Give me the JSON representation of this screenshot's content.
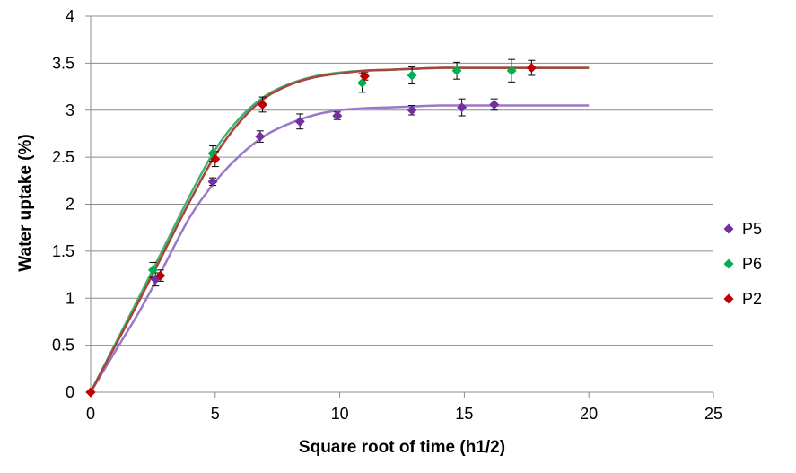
{
  "chart_data": {
    "type": "scatter",
    "title": "",
    "xlabel": "Square root of time (h1/2)",
    "ylabel": "Water uptake (%)",
    "xlim": [
      0,
      25
    ],
    "ylim": [
      0,
      4
    ],
    "x_ticks": [
      0,
      5,
      10,
      15,
      20,
      25
    ],
    "y_ticks": [
      0,
      0.5,
      1,
      1.5,
      2,
      2.5,
      3,
      3.5,
      4
    ],
    "y_tick_labels": [
      "0",
      "0.5",
      "1",
      "1.5",
      "2",
      "2.5",
      "3",
      "3.5",
      "4"
    ],
    "grid": "horizontal",
    "legend_position": "right",
    "series": [
      {
        "name": "P5",
        "color": "#7030a0",
        "fit_color": "#9b77c9",
        "x": [
          0,
          2.6,
          4.9,
          6.8,
          8.4,
          9.9,
          12.9,
          14.9,
          16.2
        ],
        "y": [
          0,
          1.2,
          2.24,
          2.72,
          2.88,
          2.94,
          3.0,
          3.03,
          3.06
        ],
        "err": [
          0,
          0.07,
          0.04,
          0.06,
          0.08,
          0.04,
          0.05,
          0.09,
          0.06
        ],
        "fit_x": [
          0,
          1,
          2,
          3,
          4,
          5,
          6,
          7,
          8,
          9,
          10,
          11,
          12,
          13,
          14,
          15,
          16,
          17,
          18,
          19,
          20
        ],
        "fit_y": [
          0,
          0.44,
          0.88,
          1.37,
          1.87,
          2.24,
          2.52,
          2.73,
          2.86,
          2.95,
          3.0,
          3.02,
          3.03,
          3.04,
          3.05,
          3.05,
          3.05,
          3.05,
          3.05,
          3.05,
          3.05
        ]
      },
      {
        "name": "P6",
        "color": "#00b050",
        "fit_color": "#43b074",
        "x": [
          2.5,
          4.9,
          10.9,
          12.9,
          14.7,
          16.9
        ],
        "y": [
          1.3,
          2.54,
          3.29,
          3.37,
          3.42,
          3.42
        ],
        "err": [
          0.08,
          0.08,
          0.1,
          0.09,
          0.09,
          0.12
        ],
        "fit_x": [
          0,
          1,
          2,
          3,
          4,
          5,
          6,
          7,
          8,
          9,
          10,
          11,
          12,
          13,
          14,
          15,
          16,
          17,
          18,
          19,
          20
        ],
        "fit_y": [
          0,
          0.52,
          1.04,
          1.57,
          2.1,
          2.58,
          2.92,
          3.15,
          3.28,
          3.36,
          3.4,
          3.42,
          3.43,
          3.44,
          3.45,
          3.45,
          3.45,
          3.45,
          3.45,
          3.45,
          3.45
        ]
      },
      {
        "name": "P2",
        "color": "#c00000",
        "fit_color": "#a8443a",
        "x": [
          0,
          2.8,
          5.0,
          6.9,
          11.0,
          17.7
        ],
        "y": [
          0,
          1.24,
          2.48,
          3.06,
          3.36,
          3.45
        ],
        "err": [
          0,
          0.06,
          0.08,
          0.08,
          0.04,
          0.08
        ],
        "fit_x": [
          0,
          1,
          2,
          3,
          4,
          5,
          6,
          7,
          8,
          9,
          10,
          11,
          12,
          13,
          14,
          15,
          16,
          17,
          18,
          19,
          20
        ],
        "fit_y": [
          0,
          0.5,
          1.0,
          1.52,
          2.04,
          2.52,
          2.88,
          3.13,
          3.27,
          3.35,
          3.39,
          3.42,
          3.43,
          3.44,
          3.45,
          3.45,
          3.45,
          3.45,
          3.45,
          3.45,
          3.45
        ]
      }
    ]
  }
}
